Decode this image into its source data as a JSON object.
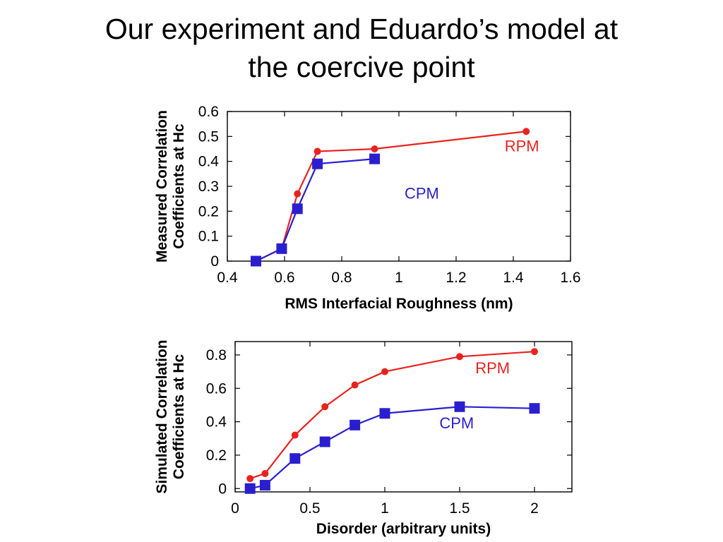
{
  "slide": {
    "title_line1": "Our experiment and Eduardo’s model at",
    "title_line2": "the coercive point"
  },
  "colors": {
    "rpm": "#e8231f",
    "cpm": "#2a1fcf",
    "axis": "#000000"
  },
  "chart_data": [
    {
      "type": "line",
      "xlabel": "RMS Interfacial Roughness (nm)",
      "ylabel_line1": "Measured Correlation",
      "ylabel_line2": "Coefficients at Hc",
      "xlim": [
        0.4,
        1.6
      ],
      "ylim": [
        0,
        0.6
      ],
      "xticks": [
        0.4,
        0.6,
        0.8,
        1,
        1.2,
        1.4,
        1.6
      ],
      "xtick_labels": [
        "0.4",
        "0.6",
        "0.8",
        "1",
        "1.2",
        "1.4",
        "1.6"
      ],
      "yticks": [
        0,
        0.1,
        0.2,
        0.3,
        0.4,
        0.5,
        0.6
      ],
      "ytick_labels": [
        "0",
        "0.1",
        "0.2",
        "0.3",
        "0.4",
        "0.5",
        "0.6"
      ],
      "grid": false,
      "series": [
        {
          "name": "RPM",
          "marker": "circle",
          "color": "#e8231f",
          "x": [
            0.5,
            0.59,
            0.645,
            0.715,
            0.915,
            1.445
          ],
          "y": [
            0.0,
            0.05,
            0.27,
            0.44,
            0.45,
            0.52
          ]
        },
        {
          "name": "CPM",
          "marker": "square",
          "color": "#2a1fcf",
          "x": [
            0.5,
            0.59,
            0.645,
            0.715,
            0.915
          ],
          "y": [
            0.0,
            0.05,
            0.21,
            0.39,
            0.41
          ]
        }
      ],
      "labels": [
        {
          "text": "RPM",
          "series": "RPM",
          "x": 1.43,
          "y": 0.44
        },
        {
          "text": "CPM",
          "series": "CPM",
          "x": 1.08,
          "y": 0.25
        }
      ]
    },
    {
      "type": "line",
      "xlabel": "Disorder (arbitrary units)",
      "ylabel_line1": "Simulated Correlation",
      "ylabel_line2": "Coefficients at Hc",
      "xlim": [
        0,
        2.25
      ],
      "ylim": [
        -0.02,
        0.88
      ],
      "xticks": [
        0,
        0.5,
        1,
        1.5,
        2
      ],
      "xtick_labels": [
        "0",
        "0.5",
        "1",
        "1.5",
        "2"
      ],
      "yticks": [
        0,
        0.2,
        0.4,
        0.6,
        0.8
      ],
      "ytick_labels": [
        "0",
        "0.2",
        "0.4",
        "0.6",
        "0.8"
      ],
      "grid": false,
      "series": [
        {
          "name": "RPM",
          "marker": "circle",
          "color": "#e8231f",
          "x": [
            0.1,
            0.2,
            0.4,
            0.6,
            0.8,
            1.0,
            1.5,
            2.0
          ],
          "y": [
            0.06,
            0.09,
            0.32,
            0.49,
            0.62,
            0.7,
            0.79,
            0.82
          ]
        },
        {
          "name": "CPM",
          "marker": "square",
          "color": "#2a1fcf",
          "x": [
            0.1,
            0.2,
            0.4,
            0.6,
            0.8,
            1.0,
            1.5,
            2.0
          ],
          "y": [
            0.0,
            0.02,
            0.18,
            0.28,
            0.38,
            0.45,
            0.49,
            0.48
          ]
        }
      ],
      "labels": [
        {
          "text": "RPM",
          "series": "RPM",
          "x": 1.72,
          "y": 0.69
        },
        {
          "text": "CPM",
          "series": "CPM",
          "x": 1.48,
          "y": 0.36
        }
      ]
    }
  ]
}
